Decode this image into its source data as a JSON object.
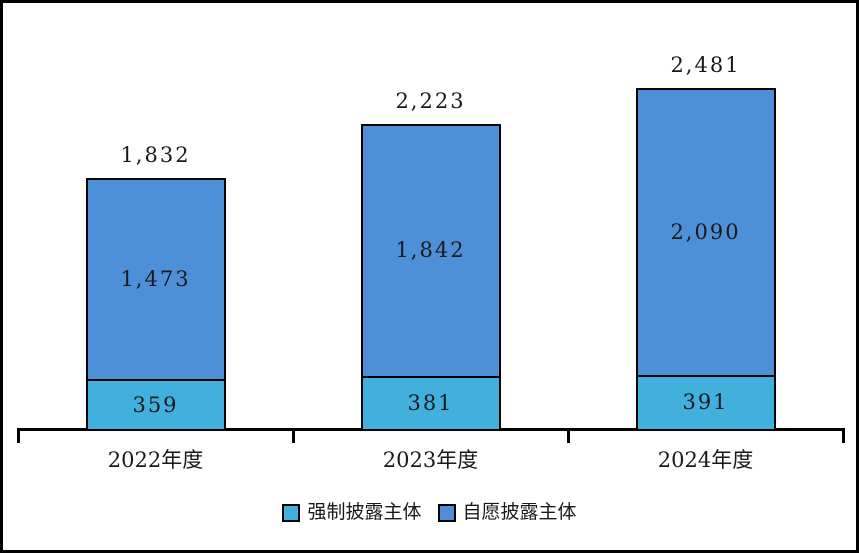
{
  "chart_data": {
    "type": "bar",
    "stacked": true,
    "orientation": "vertical",
    "title": "",
    "xlabel": "",
    "ylabel": "",
    "ylim": [
      0,
      2600
    ],
    "grid": false,
    "legend_position": "bottom",
    "axis_color": "#000000",
    "bar_outline_color": "#000000",
    "label_color": "#1a1a1a",
    "categories": [
      "2022年度",
      "2023年度",
      "2024年度"
    ],
    "series": [
      {
        "name": "强制披露主体",
        "color": "#41B0DD",
        "values": [
          359,
          381,
          391
        ],
        "value_labels": [
          "359",
          "381",
          "391"
        ]
      },
      {
        "name": "自愿披露主体",
        "color": "#4E90D8",
        "values": [
          1473,
          1842,
          2090
        ],
        "value_labels": [
          "1,473",
          "1,842",
          "2,090"
        ]
      }
    ],
    "totals": [
      1832,
      2223,
      2481
    ],
    "total_labels": [
      "1,832",
      "2,223",
      "2,481"
    ]
  },
  "legend": {
    "items": [
      {
        "label": "强制披露主体",
        "color": "#41B0DD"
      },
      {
        "label": "自愿披露主体",
        "color": "#4E90D8"
      }
    ]
  }
}
